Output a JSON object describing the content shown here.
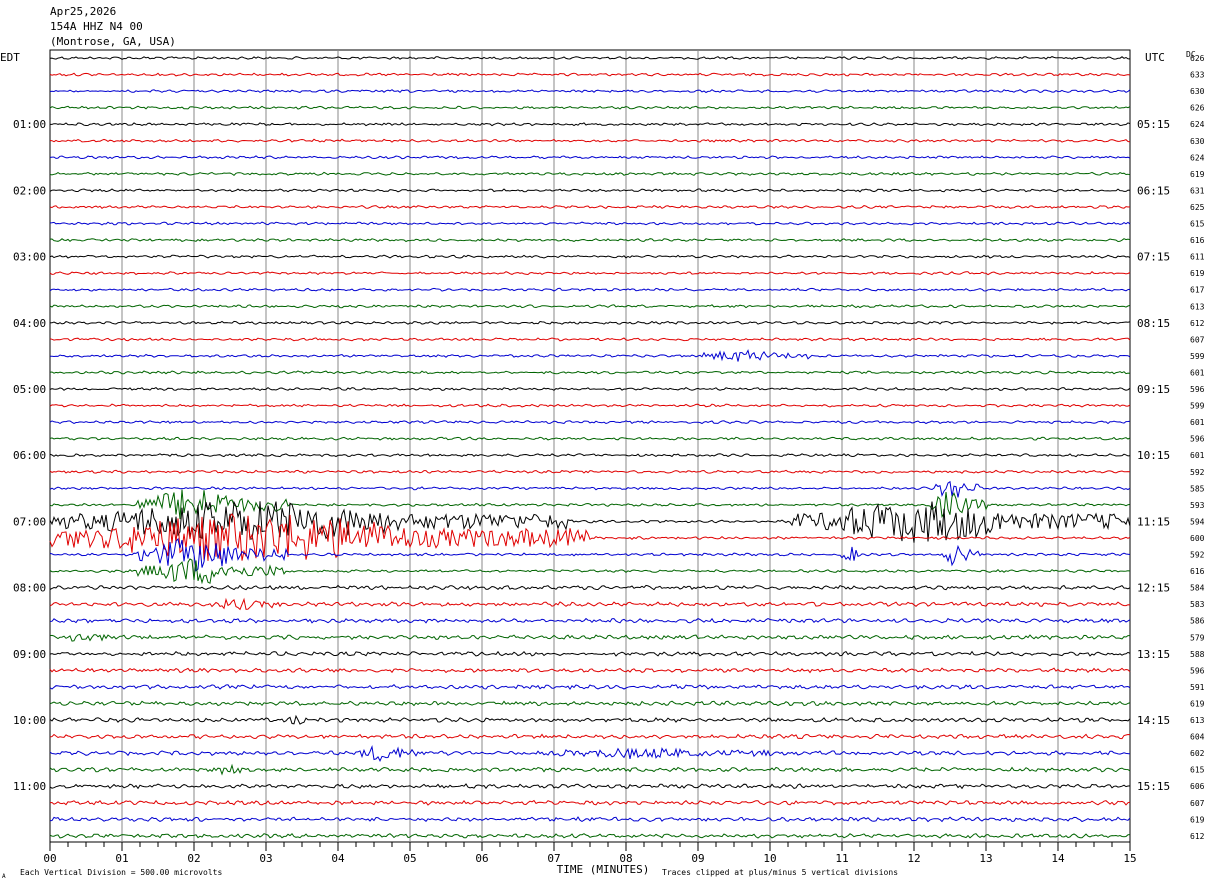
{
  "header": {
    "date": "Apr25,2026",
    "station": "154A HHZ N4 00",
    "location": "(Montrose, GA, USA)"
  },
  "labels": {
    "left_tz": "EDT",
    "right_tz": "UTC",
    "dc": "DC",
    "xlabel": "TIME (MINUTES)",
    "scale_note": "Each Vertical Division =  500.00 microvolts",
    "clip_note": "Traces clipped at plus/minus 5 vertical divisions",
    "corner_mark": "A"
  },
  "colors": {
    "cycle": [
      "#000000",
      "#e00000",
      "#0000d0",
      "#006400"
    ],
    "grid": "#888888"
  },
  "chart_data": {
    "type": "line",
    "xlim": [
      0,
      15
    ],
    "x_ticks": [
      "00",
      "01",
      "02",
      "03",
      "04",
      "05",
      "06",
      "07",
      "08",
      "09",
      "10",
      "11",
      "12",
      "13",
      "14",
      "15"
    ],
    "trace_count": 48,
    "left_time_labels": [
      {
        "row": 4,
        "text": "01:00"
      },
      {
        "row": 8,
        "text": "02:00"
      },
      {
        "row": 12,
        "text": "03:00"
      },
      {
        "row": 16,
        "text": "04:00"
      },
      {
        "row": 20,
        "text": "05:00"
      },
      {
        "row": 24,
        "text": "06:00"
      },
      {
        "row": 28,
        "text": "07:00"
      },
      {
        "row": 32,
        "text": "08:00"
      },
      {
        "row": 36,
        "text": "09:00"
      },
      {
        "row": 40,
        "text": "10:00"
      },
      {
        "row": 44,
        "text": "11:00"
      }
    ],
    "right_time_labels": [
      {
        "row": 4,
        "text": "05:15"
      },
      {
        "row": 8,
        "text": "06:15"
      },
      {
        "row": 12,
        "text": "07:15"
      },
      {
        "row": 16,
        "text": "08:15"
      },
      {
        "row": 20,
        "text": "09:15"
      },
      {
        "row": 24,
        "text": "10:15"
      },
      {
        "row": 28,
        "text": "11:15"
      },
      {
        "row": 32,
        "text": "12:15"
      },
      {
        "row": 36,
        "text": "13:15"
      },
      {
        "row": 40,
        "text": "14:15"
      },
      {
        "row": 44,
        "text": "15:15"
      }
    ],
    "dc_values": [
      "626",
      "633",
      "630",
      "626",
      "624",
      "630",
      "624",
      "619",
      "631",
      "625",
      "615",
      "616",
      "611",
      "619",
      "617",
      "613",
      "612",
      "607",
      "599",
      "601",
      "596",
      "599",
      "601",
      "596",
      "601",
      "592",
      "585",
      "593",
      "594",
      "600",
      "592",
      "616",
      "584",
      "583",
      "586",
      "579",
      "588",
      "596",
      "591",
      "619",
      "613",
      "604",
      "602",
      "615",
      "606",
      "607",
      "619",
      "612"
    ],
    "events": [
      {
        "row": 28,
        "start": 0.0,
        "end": 7.2,
        "amp": 2.5
      },
      {
        "row": 29,
        "start": 0.0,
        "end": 7.5,
        "amp": 3.0
      },
      {
        "row": 27,
        "start": 1.2,
        "end": 3.3,
        "amp": 2.0
      },
      {
        "row": 30,
        "start": 1.2,
        "end": 3.3,
        "amp": 2.0
      },
      {
        "row": 31,
        "start": 1.2,
        "end": 3.3,
        "amp": 1.6
      },
      {
        "row": 33,
        "start": 2.2,
        "end": 3.2,
        "amp": 0.6
      },
      {
        "row": 28,
        "start": 10.3,
        "end": 15.0,
        "amp": 2.5
      },
      {
        "row": 27,
        "start": 12.2,
        "end": 13.0,
        "amp": 1.6
      },
      {
        "row": 26,
        "start": 12.3,
        "end": 12.9,
        "amp": 1.4
      },
      {
        "row": 30,
        "start": 11.0,
        "end": 11.3,
        "amp": 1.0
      },
      {
        "row": 30,
        "start": 12.4,
        "end": 12.9,
        "amp": 1.4
      },
      {
        "row": 18,
        "start": 9.0,
        "end": 10.6,
        "amp": 0.6
      },
      {
        "row": 42,
        "start": 4.3,
        "end": 5.2,
        "amp": 0.9
      },
      {
        "row": 42,
        "start": 7.0,
        "end": 10.0,
        "amp": 0.5
      },
      {
        "row": 35,
        "start": 0.2,
        "end": 0.8,
        "amp": 0.5
      },
      {
        "row": 40,
        "start": 3.3,
        "end": 3.6,
        "amp": 0.6
      },
      {
        "row": 43,
        "start": 2.3,
        "end": 2.7,
        "amp": 0.5
      },
      {
        "row": 46,
        "start": 7.3,
        "end": 7.6,
        "amp": 0.5
      }
    ]
  }
}
